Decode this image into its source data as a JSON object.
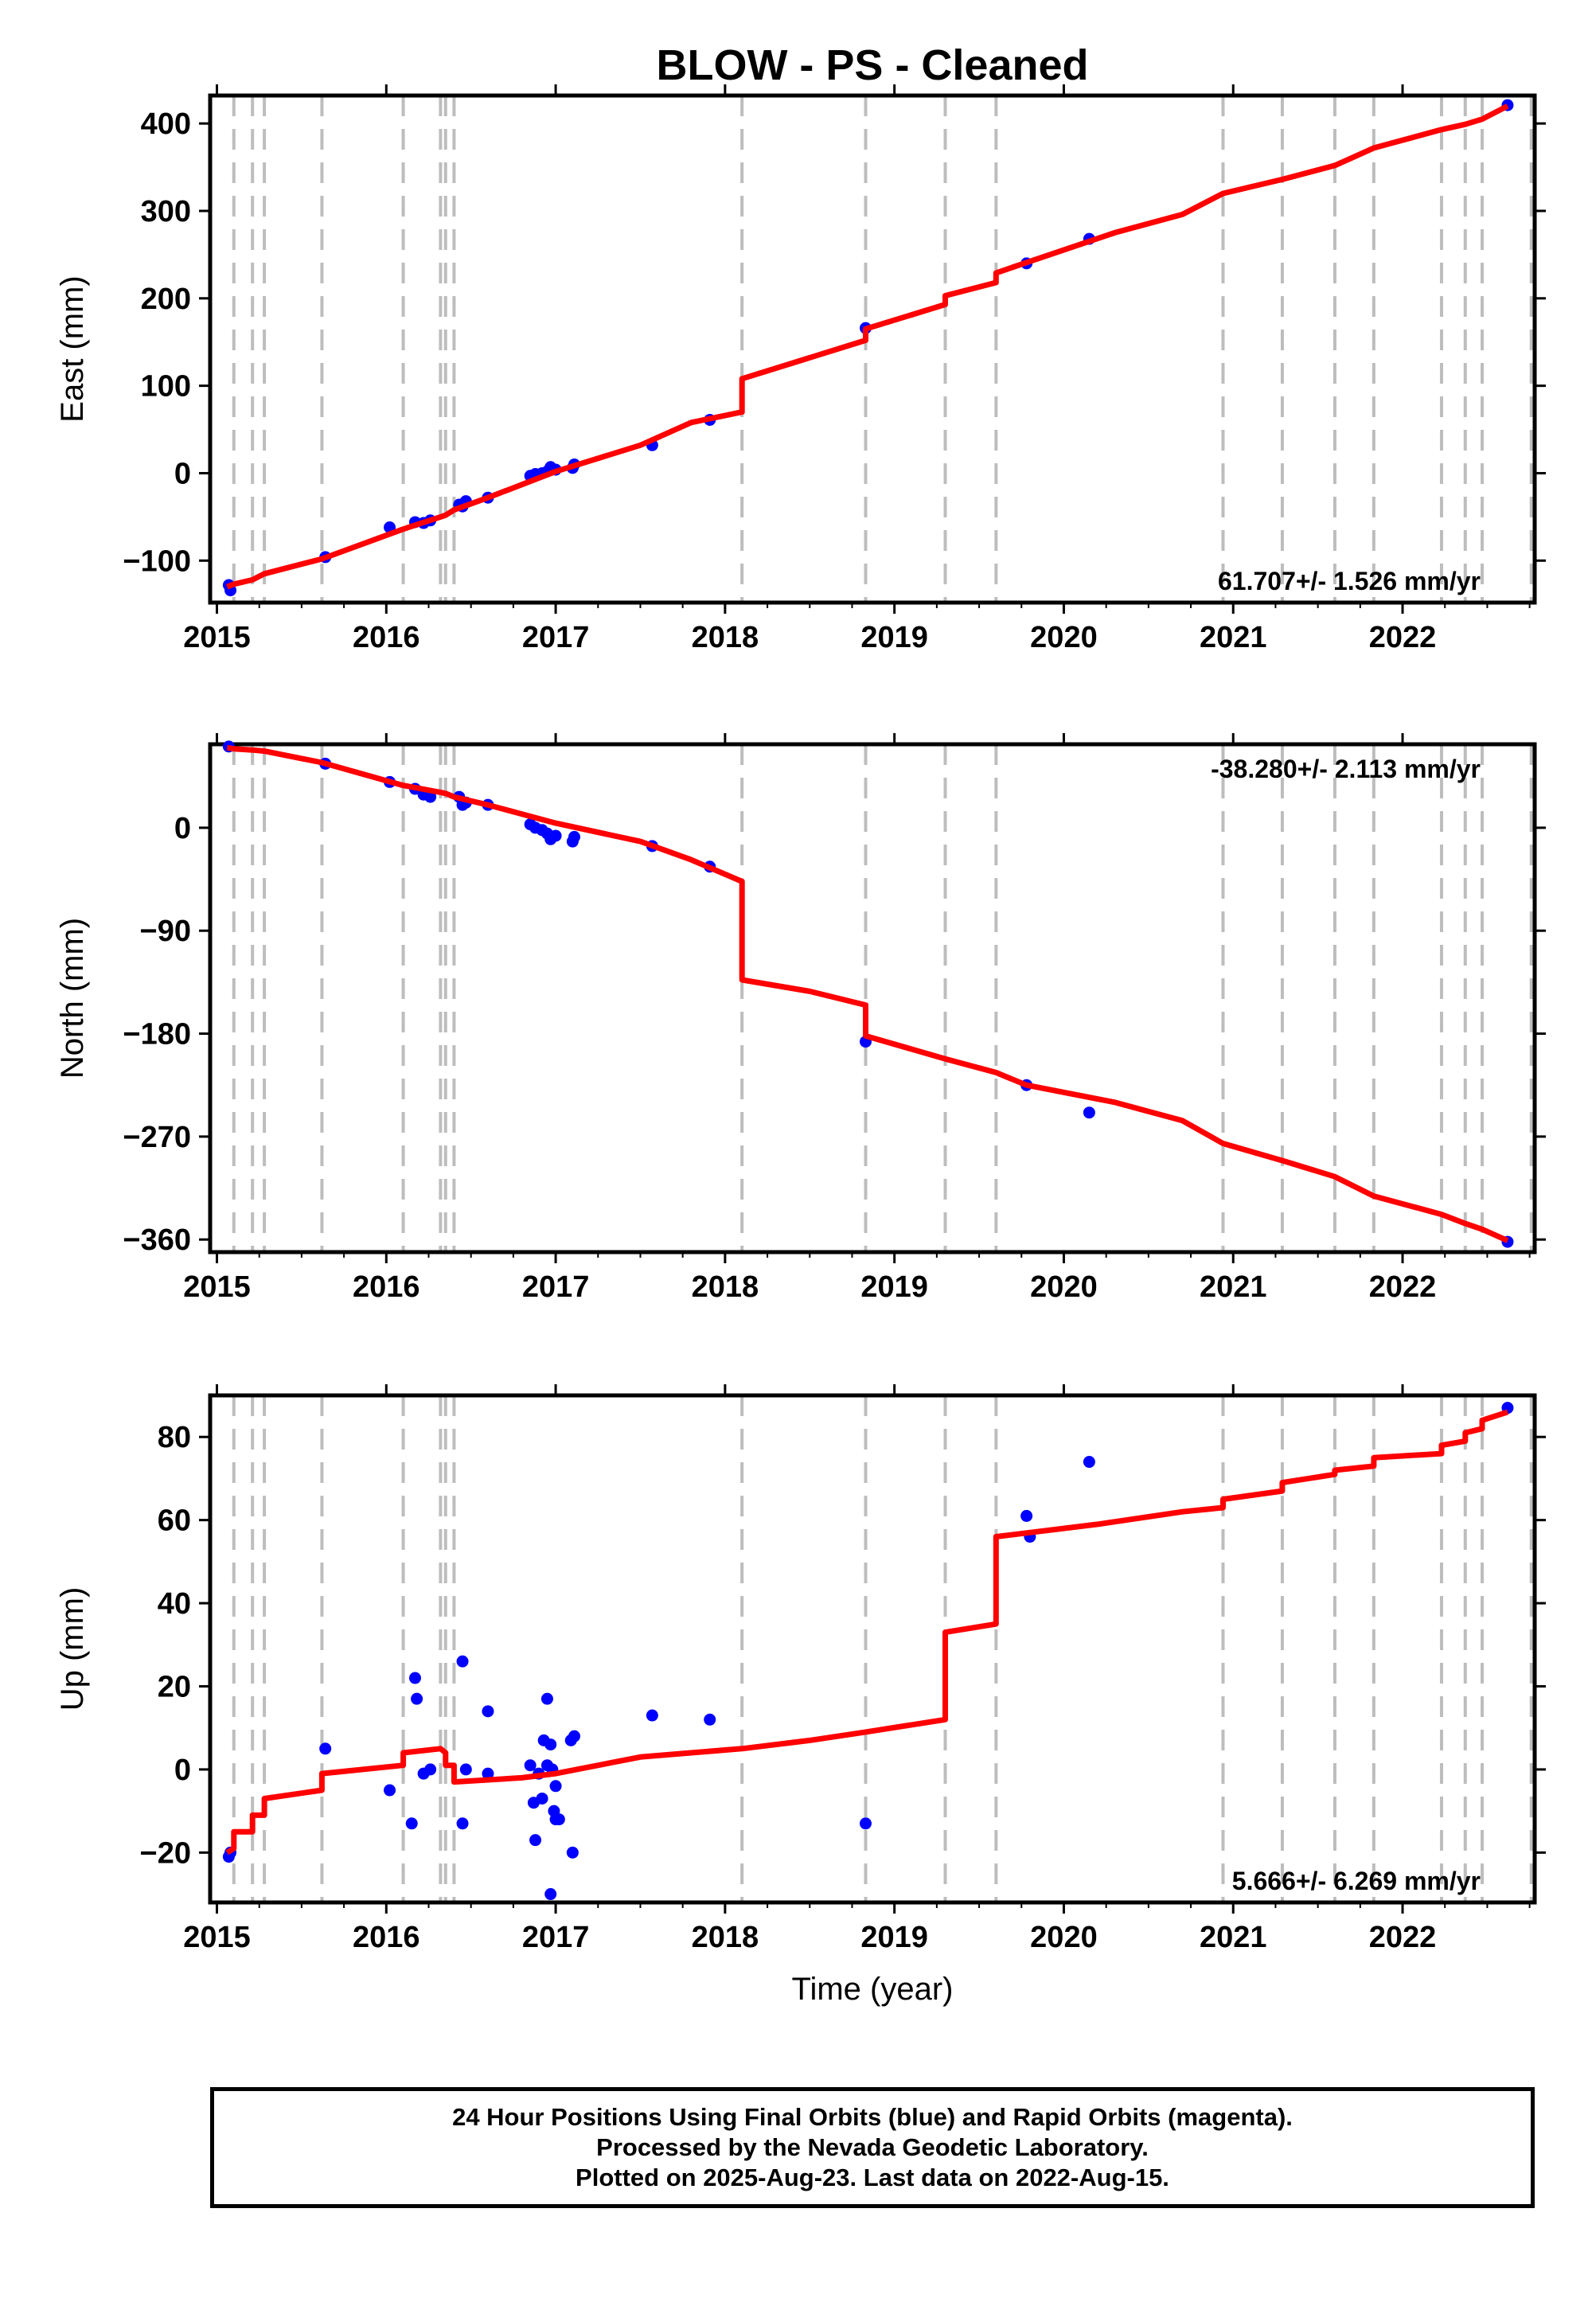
{
  "chart_data": [
    {
      "type": "line",
      "panel": "east",
      "title": "BLOW  - PS - Cleaned",
      "xlabel": "",
      "ylabel": "East (mm)",
      "xlim": [
        2014.96,
        2022.78
      ],
      "ylim": [
        -148,
        432
      ],
      "yticks": [
        -100,
        0,
        100,
        200,
        300,
        400
      ],
      "xticks": [
        2015,
        2016,
        2017,
        2018,
        2019,
        2020,
        2021,
        2022
      ],
      "rate_text": "61.707+/- 1.526 mm/yr",
      "rate_position": "bottom-right",
      "grid": false,
      "event_lines": [
        2015.1,
        2015.21,
        2015.28,
        2015.62,
        2016.1,
        2016.32,
        2016.35,
        2016.4,
        2018.1,
        2018.83,
        2019.3,
        2019.6,
        2020.94,
        2021.29,
        2021.6,
        2021.83,
        2022.23,
        2022.37,
        2022.47,
        2022.76
      ],
      "points": [
        {
          "x": 2015.07,
          "y": -128
        },
        {
          "x": 2015.08,
          "y": -134
        },
        {
          "x": 2015.64,
          "y": -96
        },
        {
          "x": 2016.02,
          "y": -62
        },
        {
          "x": 2016.17,
          "y": -56
        },
        {
          "x": 2016.22,
          "y": -57
        },
        {
          "x": 2016.26,
          "y": -54
        },
        {
          "x": 2016.43,
          "y": -36
        },
        {
          "x": 2016.45,
          "y": -38
        },
        {
          "x": 2016.47,
          "y": -32
        },
        {
          "x": 2016.6,
          "y": -28
        },
        {
          "x": 2016.85,
          "y": -3
        },
        {
          "x": 2016.88,
          "y": -1
        },
        {
          "x": 2016.92,
          "y": 0
        },
        {
          "x": 2016.95,
          "y": 2
        },
        {
          "x": 2016.97,
          "y": 7
        },
        {
          "x": 2017.0,
          "y": 4
        },
        {
          "x": 2017.1,
          "y": 6
        },
        {
          "x": 2017.11,
          "y": 10
        },
        {
          "x": 2017.57,
          "y": 32
        },
        {
          "x": 2017.91,
          "y": 61
        },
        {
          "x": 2018.83,
          "y": 166
        },
        {
          "x": 2019.78,
          "y": 240
        },
        {
          "x": 2020.15,
          "y": 268
        },
        {
          "x": 2022.62,
          "y": 421
        }
      ],
      "model": [
        [
          2015.06,
          -130
        ],
        [
          2015.1,
          -127
        ],
        [
          2015.21,
          -122
        ],
        [
          2015.28,
          -115
        ],
        [
          2015.62,
          -98
        ],
        [
          2016.1,
          -64
        ],
        [
          2016.32,
          -50
        ],
        [
          2016.35,
          -48
        ],
        [
          2016.4,
          -42
        ],
        [
          2016.6,
          -28
        ],
        [
          2017.0,
          2
        ],
        [
          2017.5,
          32
        ],
        [
          2017.8,
          58
        ],
        [
          2018.1,
          70
        ],
        [
          2018.1,
          108
        ],
        [
          2018.83,
          152
        ],
        [
          2018.83,
          165
        ],
        [
          2019.3,
          193
        ],
        [
          2019.3,
          203
        ],
        [
          2019.6,
          218
        ],
        [
          2019.6,
          229
        ],
        [
          2019.78,
          241
        ],
        [
          2020.3,
          275
        ],
        [
          2020.7,
          296
        ],
        [
          2020.94,
          320
        ],
        [
          2021.29,
          336
        ],
        [
          2021.6,
          352
        ],
        [
          2021.83,
          372
        ],
        [
          2022.23,
          393
        ],
        [
          2022.37,
          399
        ],
        [
          2022.47,
          405
        ],
        [
          2022.62,
          420
        ]
      ]
    },
    {
      "type": "line",
      "panel": "north",
      "title": "",
      "xlabel": "",
      "ylabel": "North (mm)",
      "xlim": [
        2014.96,
        2022.78
      ],
      "ylim": [
        -371,
        73
      ],
      "yticks": [
        -360,
        -270,
        -180,
        -90,
        0
      ],
      "xticks": [
        2015,
        2016,
        2017,
        2018,
        2019,
        2020,
        2021,
        2022
      ],
      "rate_text": "-38.280+/- 2.113 mm/yr",
      "rate_position": "top-right",
      "grid": false,
      "event_lines": [
        2015.1,
        2015.21,
        2015.28,
        2015.62,
        2016.1,
        2016.32,
        2016.35,
        2016.4,
        2018.1,
        2018.83,
        2019.3,
        2019.6,
        2020.94,
        2021.29,
        2021.6,
        2021.83,
        2022.23,
        2022.37,
        2022.47,
        2022.76
      ],
      "points": [
        {
          "x": 2015.07,
          "y": 71
        },
        {
          "x": 2015.64,
          "y": 56
        },
        {
          "x": 2016.02,
          "y": 40
        },
        {
          "x": 2016.17,
          "y": 34
        },
        {
          "x": 2016.22,
          "y": 29
        },
        {
          "x": 2016.26,
          "y": 27
        },
        {
          "x": 2016.43,
          "y": 27
        },
        {
          "x": 2016.45,
          "y": 20
        },
        {
          "x": 2016.47,
          "y": 22
        },
        {
          "x": 2016.6,
          "y": 20
        },
        {
          "x": 2016.85,
          "y": 3
        },
        {
          "x": 2016.88,
          "y": 0
        },
        {
          "x": 2016.92,
          "y": -2
        },
        {
          "x": 2016.95,
          "y": -5
        },
        {
          "x": 2016.97,
          "y": -10
        },
        {
          "x": 2017.0,
          "y": -7
        },
        {
          "x": 2017.1,
          "y": -12
        },
        {
          "x": 2017.11,
          "y": -8
        },
        {
          "x": 2017.57,
          "y": -16
        },
        {
          "x": 2017.91,
          "y": -34
        },
        {
          "x": 2018.83,
          "y": -187
        },
        {
          "x": 2019.78,
          "y": -225
        },
        {
          "x": 2020.15,
          "y": -249
        },
        {
          "x": 2022.62,
          "y": -362
        }
      ],
      "model": [
        [
          2015.06,
          70
        ],
        [
          2015.1,
          69
        ],
        [
          2015.21,
          68
        ],
        [
          2015.28,
          67
        ],
        [
          2015.62,
          57
        ],
        [
          2016.1,
          37
        ],
        [
          2016.32,
          31
        ],
        [
          2016.35,
          30
        ],
        [
          2016.4,
          27
        ],
        [
          2016.6,
          20
        ],
        [
          2017.0,
          4
        ],
        [
          2017.5,
          -12
        ],
        [
          2017.8,
          -28
        ],
        [
          2018.1,
          -47
        ],
        [
          2018.1,
          -133
        ],
        [
          2018.5,
          -143
        ],
        [
          2018.83,
          -155
        ],
        [
          2018.83,
          -182
        ],
        [
          2019.3,
          -202
        ],
        [
          2019.6,
          -214
        ],
        [
          2019.78,
          -225
        ],
        [
          2020.3,
          -240
        ],
        [
          2020.7,
          -256
        ],
        [
          2020.94,
          -276
        ],
        [
          2021.29,
          -291
        ],
        [
          2021.6,
          -305
        ],
        [
          2021.83,
          -322
        ],
        [
          2022.23,
          -338
        ],
        [
          2022.37,
          -346
        ],
        [
          2022.47,
          -351
        ],
        [
          2022.62,
          -361
        ]
      ]
    },
    {
      "type": "line",
      "panel": "up",
      "title": "",
      "xlabel": "Time (year)",
      "ylabel": "Up (mm)",
      "xlim": [
        2014.96,
        2022.78
      ],
      "ylim": [
        -32,
        90
      ],
      "yticks": [
        -20,
        0,
        20,
        40,
        60,
        80
      ],
      "xticks": [
        2015,
        2016,
        2017,
        2018,
        2019,
        2020,
        2021,
        2022
      ],
      "rate_text": "5.666+/- 6.269 mm/yr",
      "rate_position": "bottom-right",
      "grid": false,
      "event_lines": [
        2015.1,
        2015.21,
        2015.28,
        2015.62,
        2016.1,
        2016.32,
        2016.35,
        2016.4,
        2018.1,
        2018.83,
        2019.3,
        2019.6,
        2020.94,
        2021.29,
        2021.6,
        2021.83,
        2022.23,
        2022.37,
        2022.47,
        2022.76
      ],
      "points": [
        {
          "x": 2015.07,
          "y": -21
        },
        {
          "x": 2015.08,
          "y": -20
        },
        {
          "x": 2015.64,
          "y": 5
        },
        {
          "x": 2016.02,
          "y": -5
        },
        {
          "x": 2016.15,
          "y": -13
        },
        {
          "x": 2016.17,
          "y": 22
        },
        {
          "x": 2016.18,
          "y": 17
        },
        {
          "x": 2016.22,
          "y": -1
        },
        {
          "x": 2016.26,
          "y": 0
        },
        {
          "x": 2016.45,
          "y": 26
        },
        {
          "x": 2016.45,
          "y": -13
        },
        {
          "x": 2016.47,
          "y": 0
        },
        {
          "x": 2016.6,
          "y": 14
        },
        {
          "x": 2016.6,
          "y": -1
        },
        {
          "x": 2016.85,
          "y": 1
        },
        {
          "x": 2016.87,
          "y": -8
        },
        {
          "x": 2016.88,
          "y": -17
        },
        {
          "x": 2016.9,
          "y": -1
        },
        {
          "x": 2016.92,
          "y": -7
        },
        {
          "x": 2016.93,
          "y": 7
        },
        {
          "x": 2016.95,
          "y": 1
        },
        {
          "x": 2016.95,
          "y": 17
        },
        {
          "x": 2016.97,
          "y": 6
        },
        {
          "x": 2016.97,
          "y": -30
        },
        {
          "x": 2016.98,
          "y": 0
        },
        {
          "x": 2016.99,
          "y": -10
        },
        {
          "x": 2017.0,
          "y": -12
        },
        {
          "x": 2017.0,
          "y": -4
        },
        {
          "x": 2017.02,
          "y": -12
        },
        {
          "x": 2017.09,
          "y": 7
        },
        {
          "x": 2017.1,
          "y": -20
        },
        {
          "x": 2017.11,
          "y": 8
        },
        {
          "x": 2017.57,
          "y": 13
        },
        {
          "x": 2017.91,
          "y": 12
        },
        {
          "x": 2018.83,
          "y": -13
        },
        {
          "x": 2019.78,
          "y": 61
        },
        {
          "x": 2019.8,
          "y": 56
        },
        {
          "x": 2020.15,
          "y": 74
        },
        {
          "x": 2022.62,
          "y": 87
        }
      ],
      "model": [
        [
          2015.06,
          -20
        ],
        [
          2015.1,
          -19
        ],
        [
          2015.1,
          -15
        ],
        [
          2015.21,
          -15
        ],
        [
          2015.21,
          -11
        ],
        [
          2015.28,
          -11
        ],
        [
          2015.28,
          -7
        ],
        [
          2015.62,
          -5
        ],
        [
          2015.62,
          -1
        ],
        [
          2016.1,
          1
        ],
        [
          2016.1,
          4
        ],
        [
          2016.32,
          5
        ],
        [
          2016.35,
          4
        ],
        [
          2016.35,
          1
        ],
        [
          2016.4,
          1
        ],
        [
          2016.4,
          -3
        ],
        [
          2016.8,
          -2
        ],
        [
          2017.0,
          -1
        ],
        [
          2017.5,
          3
        ],
        [
          2017.8,
          4
        ],
        [
          2018.1,
          5
        ],
        [
          2018.5,
          7
        ],
        [
          2018.83,
          9
        ],
        [
          2019.3,
          12
        ],
        [
          2019.3,
          33
        ],
        [
          2019.6,
          35
        ],
        [
          2019.6,
          56
        ],
        [
          2020.2,
          59
        ],
        [
          2020.7,
          62
        ],
        [
          2020.94,
          63
        ],
        [
          2020.94,
          65
        ],
        [
          2021.29,
          67
        ],
        [
          2021.29,
          69
        ],
        [
          2021.6,
          71
        ],
        [
          2021.6,
          72
        ],
        [
          2021.83,
          73
        ],
        [
          2021.83,
          75
        ],
        [
          2022.23,
          76
        ],
        [
          2022.23,
          78
        ],
        [
          2022.37,
          79
        ],
        [
          2022.37,
          81
        ],
        [
          2022.47,
          82
        ],
        [
          2022.47,
          84
        ],
        [
          2022.62,
          86
        ]
      ]
    }
  ],
  "footer": {
    "line1": "24 Hour Positions Using Final Orbits (blue) and Rapid Orbits (magenta).",
    "line2": "Processed by the Nevada Geodetic Laboratory.",
    "line3": "Plotted on 2025-Aug-23. Last data on 2022-Aug-15."
  },
  "colors": {
    "points": "#0000ff",
    "model": "#ff0000",
    "event_lines": "#bdbdbd",
    "frame": "#000000"
  }
}
